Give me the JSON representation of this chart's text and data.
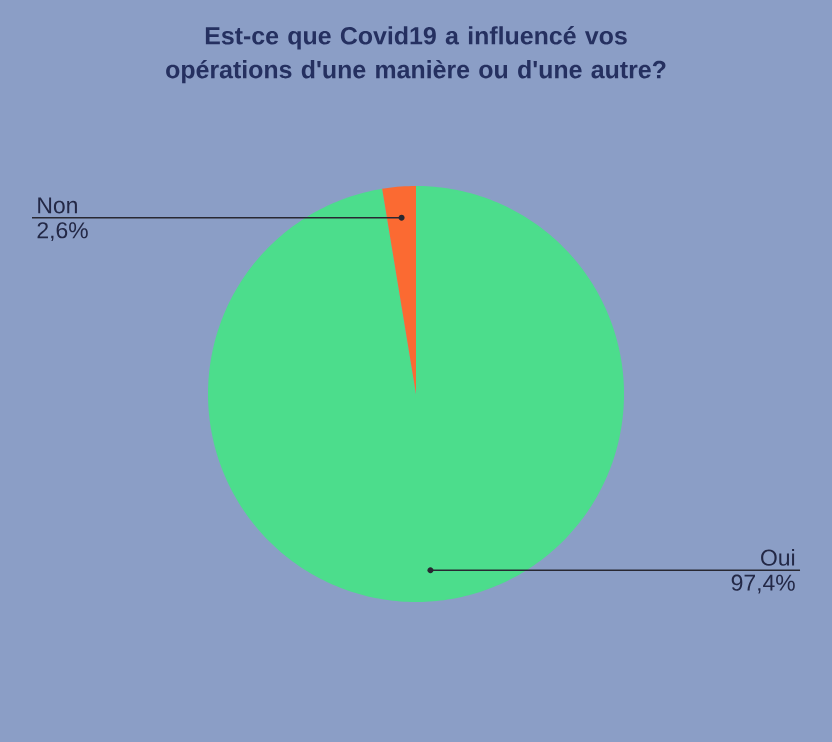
{
  "chart_data": {
    "type": "pie",
    "title": "Est-ce que Covid19 a influencé vos opérations d'une manière ou d'une autre?",
    "categories": [
      "Oui",
      "Non"
    ],
    "values": [
      97.4,
      2.6
    ],
    "colors": [
      "#4cdd8c",
      "#fb6a32"
    ],
    "value_labels": [
      "97,4%",
      "2,6%"
    ]
  }
}
